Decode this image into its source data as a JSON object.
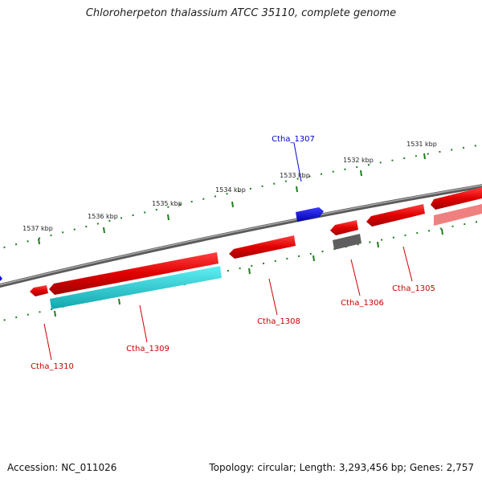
{
  "header": {
    "title": "Chloroherpeton thalassium ATCC 35110, complete genome"
  },
  "footer": {
    "accession": "Accession: NC_011026",
    "stats": "Topology: circular; Length: 3,293,456 bp; Genes: 2,757"
  },
  "scale": {
    "color": "#1e7d1e",
    "ticks": [
      {
        "label": "1531 kbp"
      },
      {
        "label": "1532 kbp"
      },
      {
        "label": "1533 kbp"
      },
      {
        "label": "1534 kbp"
      },
      {
        "label": "1535 kbp"
      },
      {
        "label": "1536 kbp"
      },
      {
        "label": "1537 kbp"
      }
    ]
  },
  "genes": [
    {
      "label": "Ctha_1305",
      "strand": "-",
      "color": "#e00000"
    },
    {
      "label": "Ctha_1306",
      "strand": "-",
      "color": "#e00000"
    },
    {
      "label": "Ctha_1307",
      "strand": "+",
      "color": "#0000ee"
    },
    {
      "label": "Ctha_1308",
      "strand": "-",
      "color": "#e00000"
    },
    {
      "label": "Ctha_1309",
      "strand": "-",
      "color": "#e00000"
    },
    {
      "label": "Ctha_1310",
      "strand": "-",
      "color": "#e00000"
    }
  ],
  "colors": {
    "backbone": "#808080",
    "minus_strand": "#ee0000",
    "plus_strand": "#0000ee",
    "rna_or_other": "#1ccfd6",
    "pseudo": "#606060",
    "faded": "#f08080"
  }
}
